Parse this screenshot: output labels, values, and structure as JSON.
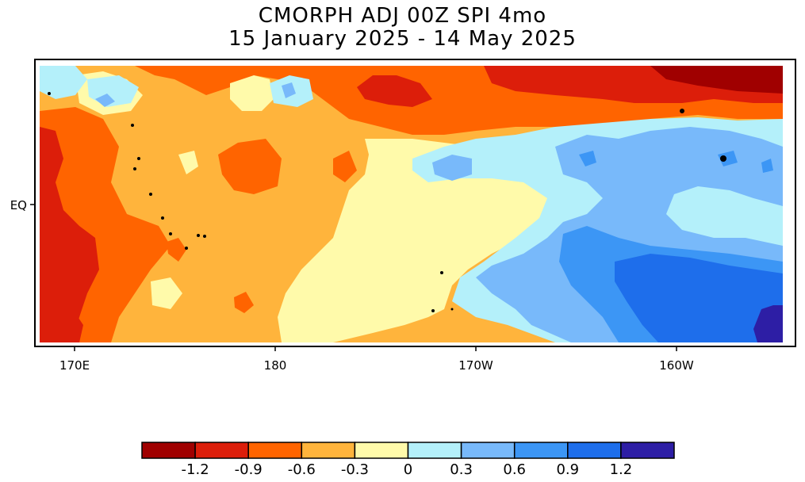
{
  "title": {
    "line1": "CMORPH ADJ 00Z SPI 4mo",
    "line2": "15 January 2025 - 14 May 2025"
  },
  "axes": {
    "x_ticks": [
      "170E",
      "180",
      "170W",
      "160W"
    ],
    "y_ticks": [
      "EQ"
    ]
  },
  "colorbar": {
    "labels": [
      "-1.2",
      "-0.9",
      "-0.6",
      "-0.3",
      "0",
      "0.3",
      "0.6",
      "0.9",
      "1.2"
    ],
    "colors": [
      "#a00000",
      "#dc1e0a",
      "#ff6400",
      "#ffb43c",
      "#fffaaa",
      "#b4f0fa",
      "#78b9fa",
      "#3c96f5",
      "#1e6eeb",
      "#2d1ea5"
    ]
  }
}
